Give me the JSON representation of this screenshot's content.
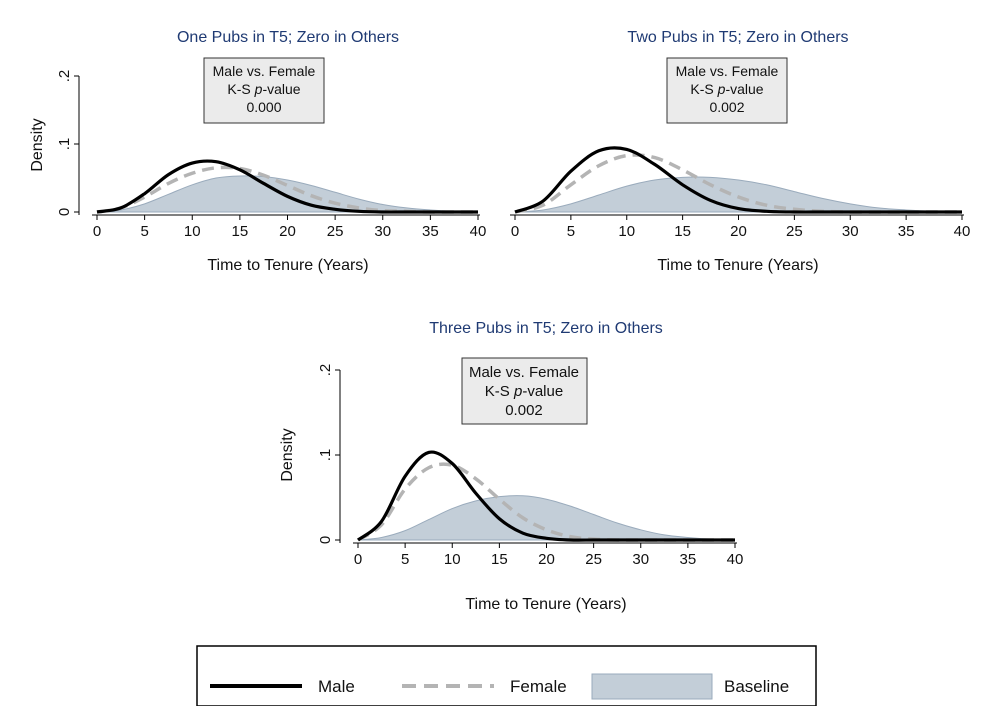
{
  "chart_data": [
    {
      "type": "area",
      "title": "One Pubs in T5; Zero in Others",
      "xlabel": "Time to Tenure (Years)",
      "ylabel": "Density",
      "xlim": [
        0,
        40
      ],
      "ylim": [
        0,
        0.2
      ],
      "xticks": [
        "0",
        "5",
        "10",
        "15",
        "20",
        "25",
        "30",
        "35",
        "40"
      ],
      "yticks": [
        ".2",
        ".1",
        "0"
      ],
      "annotation": {
        "line1": "Male vs. Female",
        "line2_prefix": "K-S ",
        "line2_italic": "p",
        "line2_suffix": "-value",
        "line3": "0.000"
      },
      "x": [
        0,
        2.5,
        5,
        7.5,
        10,
        12.5,
        15,
        17.5,
        20,
        22.5,
        25,
        27.5,
        30,
        32.5,
        35,
        37.5,
        40
      ],
      "series": [
        {
          "name": "Male",
          "values": [
            0.0,
            0.006,
            0.027,
            0.055,
            0.072,
            0.074,
            0.062,
            0.042,
            0.023,
            0.01,
            0.004,
            0.001,
            0.0,
            0.0,
            0.0,
            0.0,
            0.0
          ]
        },
        {
          "name": "Female",
          "values": [
            0.0,
            0.006,
            0.022,
            0.042,
            0.057,
            0.065,
            0.064,
            0.054,
            0.039,
            0.024,
            0.013,
            0.006,
            0.002,
            0.001,
            0.0,
            0.0,
            0.0
          ]
        },
        {
          "name": "Baseline",
          "values": [
            0.0,
            0.003,
            0.012,
            0.026,
            0.04,
            0.05,
            0.053,
            0.052,
            0.047,
            0.039,
            0.029,
            0.019,
            0.011,
            0.006,
            0.003,
            0.001,
            0.0
          ]
        }
      ]
    },
    {
      "type": "area",
      "title": "Two Pubs in T5; Zero in Others",
      "xlabel": "Time to Tenure (Years)",
      "ylabel": "",
      "xlim": [
        0,
        40
      ],
      "ylim": [
        0,
        0.2
      ],
      "xticks": [
        "0",
        "5",
        "10",
        "15",
        "20",
        "25",
        "30",
        "35",
        "40"
      ],
      "yticks": [],
      "annotation": {
        "line1": "Male vs. Female",
        "line2_prefix": "K-S ",
        "line2_italic": "p",
        "line2_suffix": "-value",
        "line3": "0.002"
      },
      "x": [
        0,
        2.5,
        5,
        7.5,
        10,
        12.5,
        15,
        17.5,
        20,
        22.5,
        25,
        27.5,
        30,
        32.5,
        35,
        37.5,
        40
      ],
      "series": [
        {
          "name": "Male",
          "values": [
            0.0,
            0.016,
            0.06,
            0.09,
            0.092,
            0.07,
            0.04,
            0.017,
            0.005,
            0.001,
            0.0,
            0.0,
            0.0,
            0.0,
            0.0,
            0.0,
            0.0
          ]
        },
        {
          "name": "Female",
          "values": [
            0.0,
            0.01,
            0.04,
            0.068,
            0.083,
            0.08,
            0.062,
            0.04,
            0.022,
            0.01,
            0.004,
            0.001,
            0.0,
            0.0,
            0.0,
            0.0,
            0.0
          ]
        },
        {
          "name": "Baseline",
          "values": [
            0.0,
            0.003,
            0.012,
            0.025,
            0.038,
            0.047,
            0.051,
            0.051,
            0.047,
            0.04,
            0.03,
            0.02,
            0.012,
            0.006,
            0.003,
            0.001,
            0.0
          ]
        }
      ]
    },
    {
      "type": "area",
      "title": "Three Pubs in T5; Zero in Others",
      "xlabel": "Time to Tenure (Years)",
      "ylabel": "Density",
      "xlim": [
        0,
        40
      ],
      "ylim": [
        0,
        0.2
      ],
      "xticks": [
        "0",
        "5",
        "10",
        "15",
        "20",
        "25",
        "30",
        "35",
        "40"
      ],
      "yticks": [
        ".2",
        ".1",
        "0"
      ],
      "annotation": {
        "line1": "Male vs. Female",
        "line2_prefix": "K-S ",
        "line2_italic": "p",
        "line2_suffix": "-value",
        "line3": "0.002"
      },
      "x": [
        0,
        2.5,
        5,
        7.5,
        10,
        12.5,
        15,
        17.5,
        20,
        22.5,
        25,
        27.5,
        30,
        32.5,
        35,
        37.5,
        40
      ],
      "series": [
        {
          "name": "Male",
          "values": [
            0.0,
            0.022,
            0.075,
            0.103,
            0.09,
            0.055,
            0.025,
            0.008,
            0.002,
            0.0,
            0.0,
            0.0,
            0.0,
            0.0,
            0.0,
            0.0,
            0.0
          ]
        },
        {
          "name": "Female",
          "values": [
            0.0,
            0.018,
            0.06,
            0.085,
            0.088,
            0.072,
            0.048,
            0.026,
            0.012,
            0.004,
            0.001,
            0.0,
            0.0,
            0.0,
            0.0,
            0.0,
            0.0
          ]
        },
        {
          "name": "Baseline",
          "values": [
            0.0,
            0.003,
            0.011,
            0.024,
            0.037,
            0.046,
            0.051,
            0.052,
            0.048,
            0.04,
            0.03,
            0.02,
            0.012,
            0.006,
            0.003,
            0.001,
            0.0
          ]
        }
      ]
    }
  ],
  "legend": {
    "placement": "bottom",
    "items": [
      {
        "name": "Male",
        "style": "solid-black"
      },
      {
        "name": "Female",
        "style": "dashed-gray"
      },
      {
        "name": "Baseline",
        "style": "filled-area"
      }
    ]
  },
  "colors": {
    "male": "#000000",
    "female": "#b4b4b4",
    "baseline_fill": "#c3ced8",
    "baseline_edge": "#9aabbc",
    "title": "#1f3a73"
  }
}
